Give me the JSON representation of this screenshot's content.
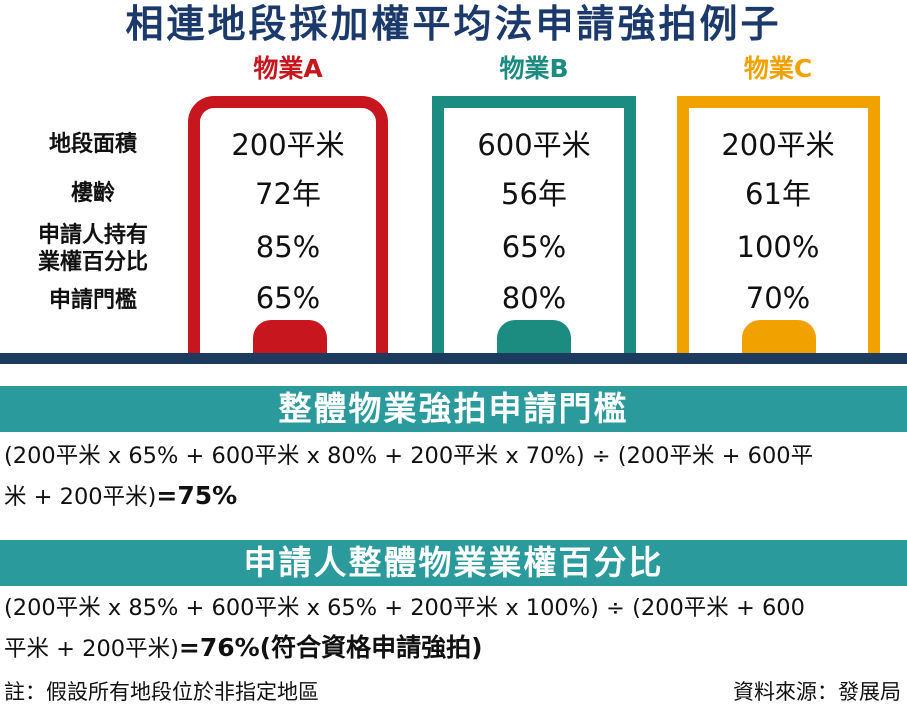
{
  "title": "相連地段採加權平均法申請強拍例子",
  "properties": [
    {
      "label": "物業A",
      "color": "#c7161e",
      "area": "200平米",
      "age": "72年",
      "ownership": "85%",
      "threshold": "65%"
    },
    {
      "label": "物業B",
      "color": "#1c8c80",
      "area": "600平米",
      "age": "56年",
      "ownership": "65%",
      "threshold": "80%"
    },
    {
      "label": "物業C",
      "color": "#f2a200",
      "area": "200平米",
      "age": "61年",
      "ownership": "100%",
      "threshold": "70%"
    }
  ],
  "row_labels": {
    "area": "地段面積",
    "age": "樓齡",
    "ownership_line1": "申請人持有",
    "ownership_line2": "業權百分比",
    "threshold": "申請門檻"
  },
  "section1": {
    "heading": "整體物業強拍申請門檻",
    "formula_line1": "(200平米 x 65% + 600平米 x 80% + 200平米 x 70%)  ÷  (200平米 + 600平",
    "formula_line2": "米 + 200平米)",
    "result": "=75%"
  },
  "section2": {
    "heading": "申請人整體物業業權百分比",
    "formula_line1": "(200平米 x 85% + 600平米 x 65% + 200平米 x 100%)  ÷  (200平米 + 600",
    "formula_line2": "平米 + 200平米)",
    "result": "=76%(符合資格申請強拍)"
  },
  "footer": {
    "note": "註：假設所有地段位於非指定地區",
    "source": "資料來源：發展局"
  }
}
